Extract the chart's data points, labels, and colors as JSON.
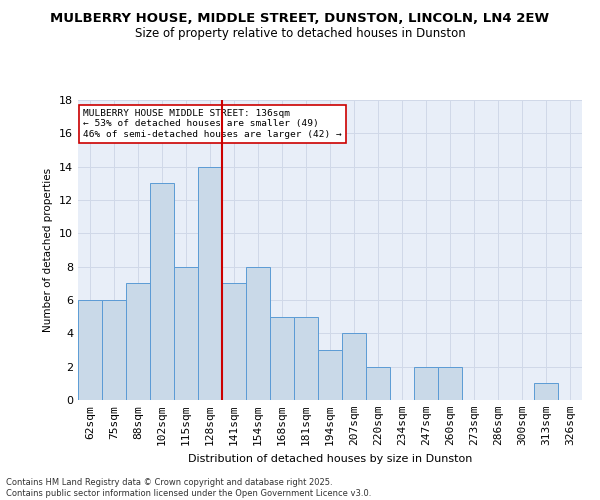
{
  "title1": "MULBERRY HOUSE, MIDDLE STREET, DUNSTON, LINCOLN, LN4 2EW",
  "title2": "Size of property relative to detached houses in Dunston",
  "xlabel": "Distribution of detached houses by size in Dunston",
  "ylabel": "Number of detached properties",
  "categories": [
    "62sqm",
    "75sqm",
    "88sqm",
    "102sqm",
    "115sqm",
    "128sqm",
    "141sqm",
    "154sqm",
    "168sqm",
    "181sqm",
    "194sqm",
    "207sqm",
    "220sqm",
    "234sqm",
    "247sqm",
    "260sqm",
    "273sqm",
    "286sqm",
    "300sqm",
    "313sqm",
    "326sqm"
  ],
  "values": [
    6,
    6,
    7,
    13,
    8,
    14,
    7,
    8,
    5,
    5,
    3,
    4,
    2,
    0,
    2,
    2,
    0,
    0,
    0,
    1,
    0
  ],
  "bar_color": "#c9d9e8",
  "bar_edge_color": "#5b9bd5",
  "vline_color": "#cc0000",
  "annotation_text": "MULBERRY HOUSE MIDDLE STREET: 136sqm\n← 53% of detached houses are smaller (49)\n46% of semi-detached houses are larger (42) →",
  "annotation_box_color": "#ffffff",
  "annotation_box_edge": "#cc0000",
  "grid_color": "#d0d8e8",
  "bg_color": "#e8eef8",
  "ylim": [
    0,
    18
  ],
  "yticks": [
    0,
    2,
    4,
    6,
    8,
    10,
    12,
    14,
    16,
    18
  ],
  "footer": "Contains HM Land Registry data © Crown copyright and database right 2025.\nContains public sector information licensed under the Open Government Licence v3.0.",
  "title_fontsize": 9.5,
  "subtitle_fontsize": 8.5,
  "footer_fontsize": 6.0
}
